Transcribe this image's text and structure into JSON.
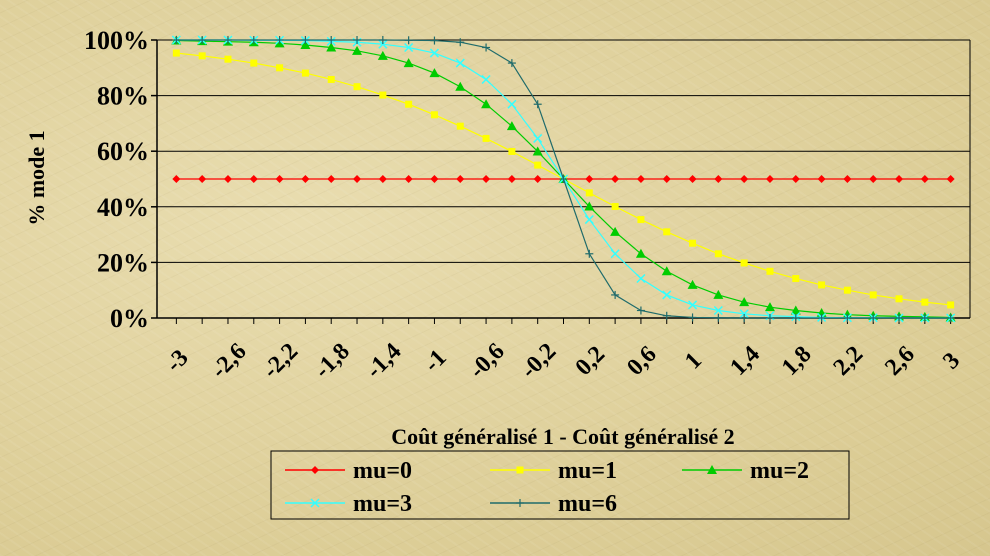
{
  "chart_data": {
    "type": "line",
    "title": "",
    "xlabel": "Coût généralisé 1 - Coût généralisé 2",
    "ylabel": "% mode 1",
    "xlim": [
      -3.15,
      3.15
    ],
    "ylim": [
      0,
      100
    ],
    "yticks": [
      0,
      20,
      40,
      60,
      80,
      100
    ],
    "ytick_labels": [
      "0%",
      "20%",
      "40%",
      "60%",
      "80%",
      "100%"
    ],
    "xtick_values": [
      -3,
      -2.6,
      -2.2,
      -1.8,
      -1.4,
      -1,
      -0.6,
      -0.2,
      0.2,
      0.6,
      1,
      1.4,
      1.8,
      2.2,
      2.6,
      3
    ],
    "xtick_labels": [
      "-3",
      "-2,6",
      "-2,2",
      "-1,8",
      "-1,4",
      "-1",
      "-0,6",
      "-0,2",
      "0,2",
      "0,6",
      "1",
      "1,4",
      "1,8",
      "2,2",
      "2,6",
      "3"
    ],
    "grid": "horizontal",
    "legend_position": "bottom",
    "x": [
      -3,
      -2.8,
      -2.6,
      -2.4,
      -2.2,
      -2,
      -1.8,
      -1.6,
      -1.4,
      -1.2,
      -1,
      -0.8,
      -0.6,
      -0.4,
      -0.2,
      0,
      0.2,
      0.4,
      0.6,
      0.8,
      1,
      1.2,
      1.4,
      1.6,
      1.8,
      2,
      2.2,
      2.4,
      2.6,
      2.8,
      3
    ],
    "series": [
      {
        "name": "mu=0",
        "color": "#ff0000",
        "marker": "diamond",
        "values": [
          50,
          50,
          50,
          50,
          50,
          50,
          50,
          50,
          50,
          50,
          50,
          50,
          50,
          50,
          50,
          50,
          50,
          50,
          50,
          50,
          50,
          50,
          50,
          50,
          50,
          50,
          50,
          50,
          50,
          50,
          50
        ]
      },
      {
        "name": "mu=1",
        "color": "#ffff00",
        "marker": "square",
        "values": [
          95.3,
          94.3,
          93.1,
          91.7,
          90.0,
          88.1,
          85.8,
          83.2,
          80.2,
          76.9,
          73.1,
          69.0,
          64.6,
          59.9,
          55.0,
          50,
          45.0,
          40.1,
          35.4,
          31.0,
          26.9,
          23.1,
          19.8,
          16.8,
          14.2,
          11.9,
          10.0,
          8.3,
          6.9,
          5.7,
          4.7
        ]
      },
      {
        "name": "mu=2",
        "color": "#00cc00",
        "marker": "triangle",
        "values": [
          99.8,
          99.6,
          99.4,
          99.2,
          98.8,
          98.2,
          97.3,
          96.1,
          94.3,
          91.7,
          88.1,
          83.2,
          76.9,
          69.0,
          59.9,
          50,
          40.1,
          31.0,
          23.1,
          16.8,
          11.9,
          8.3,
          5.7,
          3.9,
          2.7,
          1.8,
          1.2,
          0.8,
          0.6,
          0.4,
          0.2
        ]
      },
      {
        "name": "mu=3",
        "color": "#33ffff",
        "marker": "x",
        "values": [
          100,
          100,
          100,
          99.9,
          99.9,
          99.8,
          99.5,
          99.2,
          98.5,
          97.3,
          95.3,
          91.7,
          85.8,
          76.9,
          64.6,
          50,
          35.4,
          23.1,
          14.2,
          8.3,
          4.7,
          2.7,
          1.5,
          0.8,
          0.5,
          0.2,
          0.1,
          0.1,
          0,
          0,
          0
        ]
      },
      {
        "name": "mu=6",
        "color": "#1f6b6b",
        "marker": "plus",
        "values": [
          100,
          100,
          100,
          100,
          100,
          100,
          100,
          100,
          100,
          99.9,
          99.8,
          99.2,
          97.3,
          91.7,
          76.9,
          50,
          23.1,
          8.3,
          2.7,
          0.8,
          0.2,
          0.1,
          0,
          0,
          0,
          0,
          0,
          0,
          0,
          0,
          0
        ]
      }
    ]
  }
}
